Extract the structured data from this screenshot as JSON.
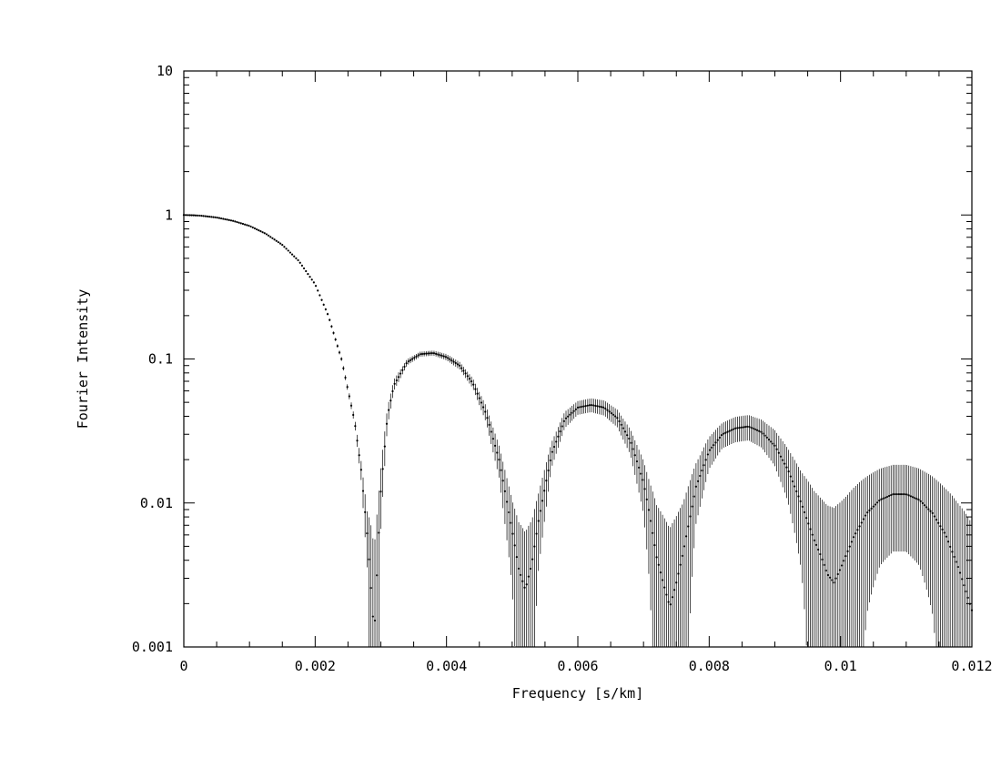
{
  "chart_data": {
    "type": "scatter",
    "title": "",
    "xlabel": "Frequency [s/km]",
    "ylabel": "Fourier Intensity",
    "xlim": [
      0,
      0.012
    ],
    "ylim": [
      0.001,
      10
    ],
    "yscale": "log",
    "grid": false,
    "legend": "none",
    "error_bars": true,
    "colors": {
      "points": "#000000",
      "error_bars": "#000000",
      "axes": "#000000"
    },
    "x_ticks": [
      {
        "value": 0,
        "label": "0"
      },
      {
        "value": 0.002,
        "label": "0.002"
      },
      {
        "value": 0.004,
        "label": "0.004"
      },
      {
        "value": 0.006,
        "label": "0.006"
      },
      {
        "value": 0.008,
        "label": "0.008"
      },
      {
        "value": 0.01,
        "label": "0.01"
      },
      {
        "value": 0.012,
        "label": "0.012"
      }
    ],
    "y_ticks": [
      {
        "value": 10,
        "label": "10"
      },
      {
        "value": 1,
        "label": "1"
      },
      {
        "value": 0.1,
        "label": "0.1"
      },
      {
        "value": 0.01,
        "label": "0.01"
      },
      {
        "value": 0.001,
        "label": "0.001"
      }
    ],
    "series": [
      {
        "x": [
          0,
          0.00025,
          0.0005,
          0.00075,
          0.001,
          0.00125,
          0.0015,
          0.00175,
          0.002,
          0.0022,
          0.0024,
          0.0026,
          0.0027,
          0.0028,
          0.0029,
          0.00295,
          0.003,
          0.0031,
          0.0032,
          0.0034,
          0.0036,
          0.0038,
          0.004,
          0.0042,
          0.0044,
          0.0046,
          0.0048,
          0.005,
          0.0051,
          0.0052,
          0.0053,
          0.0054,
          0.0056,
          0.0058,
          0.006,
          0.0062,
          0.0064,
          0.0066,
          0.0068,
          0.007,
          0.0071,
          0.0072,
          0.0073,
          0.0074,
          0.0075,
          0.0076,
          0.0078,
          0.008,
          0.0082,
          0.0084,
          0.0086,
          0.0088,
          0.009,
          0.0092,
          0.0094,
          0.0096,
          0.0097,
          0.0098,
          0.0099,
          0.01,
          0.0101,
          0.0102,
          0.0104,
          0.0106,
          0.0108,
          0.011,
          0.0112,
          0.0114,
          0.0116,
          0.0118,
          0.012
        ],
        "y": [
          1.0,
          0.99,
          0.96,
          0.91,
          0.84,
          0.74,
          0.62,
          0.48,
          0.33,
          0.2,
          0.1,
          0.037,
          0.017,
          0.0055,
          0.0012,
          0.004,
          0.012,
          0.04,
          0.066,
          0.095,
          0.108,
          0.11,
          0.103,
          0.09,
          0.068,
          0.042,
          0.02,
          0.0065,
          0.0035,
          0.0025,
          0.0038,
          0.0075,
          0.022,
          0.038,
          0.046,
          0.048,
          0.046,
          0.039,
          0.027,
          0.014,
          0.008,
          0.0042,
          0.0028,
          0.0019,
          0.0028,
          0.0045,
          0.013,
          0.023,
          0.03,
          0.033,
          0.034,
          0.031,
          0.025,
          0.017,
          0.01,
          0.0055,
          0.0043,
          0.0032,
          0.0028,
          0.0035,
          0.0045,
          0.0058,
          0.0085,
          0.0105,
          0.0115,
          0.0115,
          0.0105,
          0.0085,
          0.006,
          0.0035,
          0.0018
        ],
        "err_frac": [
          0.005,
          0.005,
          0.005,
          0.006,
          0.007,
          0.008,
          0.01,
          0.012,
          0.015,
          0.02,
          0.03,
          0.06,
          0.15,
          0.45,
          3.0,
          1.3,
          0.45,
          0.15,
          0.09,
          0.05,
          0.04,
          0.04,
          0.05,
          0.06,
          0.08,
          0.13,
          0.25,
          0.6,
          1.1,
          1.5,
          1.0,
          0.55,
          0.2,
          0.13,
          0.11,
          0.11,
          0.12,
          0.14,
          0.2,
          0.4,
          0.7,
          1.3,
          1.9,
          2.5,
          1.9,
          1.2,
          0.45,
          0.25,
          0.2,
          0.2,
          0.2,
          0.22,
          0.28,
          0.4,
          0.65,
          1.2,
          1.5,
          2.0,
          2.3,
          1.9,
          1.5,
          1.2,
          0.8,
          0.65,
          0.6,
          0.6,
          0.65,
          0.8,
          1.1,
          1.8,
          3.0
        ]
      }
    ]
  }
}
